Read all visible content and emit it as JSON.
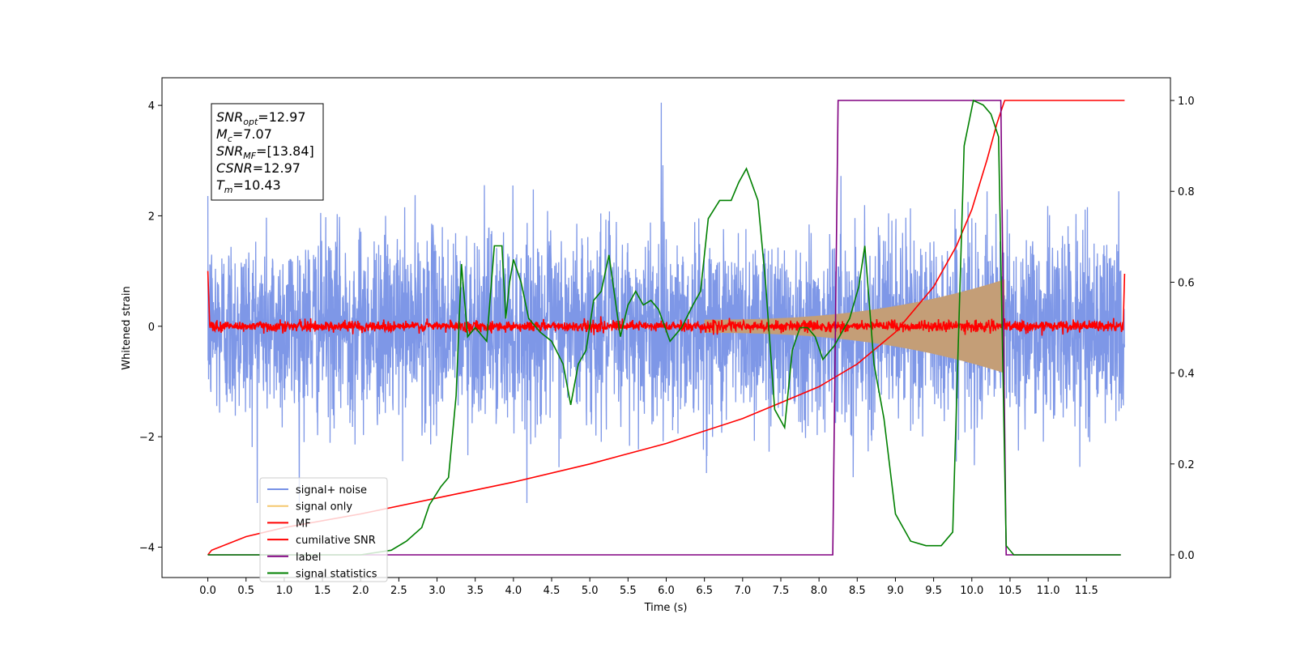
{
  "chart_data": {
    "type": "line",
    "xlabel": "Time (s)",
    "ylabel": "Whitened strain",
    "xlim": [
      -0.6,
      12.6
    ],
    "ylim": [
      -4.55,
      4.5
    ],
    "y2lim": [
      -0.05,
      1.05
    ],
    "x_ticks": [
      0.0,
      0.5,
      1.0,
      1.5,
      2.0,
      2.5,
      3.0,
      3.5,
      4.0,
      4.5,
      5.0,
      5.5,
      6.0,
      6.5,
      7.0,
      7.5,
      8.0,
      8.5,
      9.0,
      9.5,
      10.0,
      10.5,
      11.0,
      11.5
    ],
    "x_tick_labels": [
      "0.0",
      "0.5",
      "1.0",
      "1.5",
      "2.0",
      "2.5",
      "3.0",
      "3.5",
      "4.0",
      "4.5",
      "5.0",
      "5.5",
      "6.0",
      "6.5",
      "7.0",
      "7.5",
      "8.0",
      "8.5",
      "9.0",
      "9.5",
      "10.0",
      "10.5",
      "11.0",
      "11.5"
    ],
    "y_ticks": [
      -4,
      -2,
      0,
      2,
      4
    ],
    "y_tick_labels": [
      "−4",
      "−2",
      "0",
      "2",
      "4"
    ],
    "y2_ticks": [
      0.0,
      0.2,
      0.4,
      0.6,
      0.8,
      1.0
    ],
    "y2_tick_labels": [
      "0.0",
      "0.2",
      "0.4",
      "0.6",
      "0.8",
      "1.0"
    ],
    "legend_position": "lower-left",
    "series": [
      {
        "name": "signal+ noise",
        "color": "#7791e6",
        "axis": "left",
        "noise_sigma": 0.85,
        "noise_peak": 4.05,
        "t_start": 0.0,
        "t_end": 12.0
      },
      {
        "name": "signal only",
        "color": "#f5c86e",
        "axis": "left",
        "envelope": {
          "t_start": 6.5,
          "t_merge": 10.43,
          "amp_at_start": 0.12,
          "amp_at_merge": 0.85
        }
      },
      {
        "name": "MF",
        "color": "#ff0000",
        "axis": "left",
        "noise_sigma": 0.05,
        "start_spike": 1.0,
        "end_spike": 0.95
      },
      {
        "name": "cumilative SNR",
        "color": "#ff0000",
        "axis": "right",
        "points": [
          [
            0.0,
            0.0
          ],
          [
            0.05,
            0.01
          ],
          [
            0.5,
            0.04
          ],
          [
            1.0,
            0.06
          ],
          [
            2.0,
            0.09
          ],
          [
            3.0,
            0.125
          ],
          [
            4.0,
            0.16
          ],
          [
            5.0,
            0.2
          ],
          [
            6.0,
            0.245
          ],
          [
            7.0,
            0.3
          ],
          [
            7.5,
            0.335
          ],
          [
            8.0,
            0.37
          ],
          [
            8.5,
            0.42
          ],
          [
            9.0,
            0.49
          ],
          [
            9.5,
            0.59
          ],
          [
            9.8,
            0.68
          ],
          [
            10.0,
            0.76
          ],
          [
            10.2,
            0.87
          ],
          [
            10.33,
            0.95
          ],
          [
            10.43,
            1.0
          ],
          [
            12.0,
            1.0
          ]
        ]
      },
      {
        "name": "label",
        "color": "#800080",
        "axis": "right",
        "points": [
          [
            0.0,
            0.0
          ],
          [
            8.18,
            0.0
          ],
          [
            8.25,
            1.0
          ],
          [
            10.38,
            1.0
          ],
          [
            10.45,
            0.0
          ],
          [
            11.95,
            0.0
          ]
        ]
      },
      {
        "name": "signal statistics",
        "color": "#008000",
        "axis": "right",
        "points": [
          [
            0.0,
            0.0
          ],
          [
            1.0,
            0.0
          ],
          [
            2.0,
            0.0
          ],
          [
            2.4,
            0.01
          ],
          [
            2.6,
            0.03
          ],
          [
            2.8,
            0.06
          ],
          [
            2.9,
            0.11
          ],
          [
            3.05,
            0.15
          ],
          [
            3.15,
            0.17
          ],
          [
            3.25,
            0.35
          ],
          [
            3.32,
            0.64
          ],
          [
            3.4,
            0.48
          ],
          [
            3.5,
            0.5
          ],
          [
            3.65,
            0.47
          ],
          [
            3.75,
            0.68
          ],
          [
            3.85,
            0.68
          ],
          [
            3.9,
            0.52
          ],
          [
            3.95,
            0.6
          ],
          [
            4.0,
            0.65
          ],
          [
            4.1,
            0.6
          ],
          [
            4.2,
            0.52
          ],
          [
            4.35,
            0.49
          ],
          [
            4.5,
            0.47
          ],
          [
            4.65,
            0.42
          ],
          [
            4.75,
            0.33
          ],
          [
            4.85,
            0.42
          ],
          [
            4.95,
            0.45
          ],
          [
            5.05,
            0.56
          ],
          [
            5.15,
            0.58
          ],
          [
            5.25,
            0.66
          ],
          [
            5.4,
            0.48
          ],
          [
            5.5,
            0.55
          ],
          [
            5.6,
            0.58
          ],
          [
            5.7,
            0.55
          ],
          [
            5.8,
            0.56
          ],
          [
            5.9,
            0.54
          ],
          [
            6.05,
            0.47
          ],
          [
            6.2,
            0.5
          ],
          [
            6.35,
            0.55
          ],
          [
            6.45,
            0.58
          ],
          [
            6.55,
            0.74
          ],
          [
            6.7,
            0.78
          ],
          [
            6.85,
            0.78
          ],
          [
            6.95,
            0.82
          ],
          [
            7.05,
            0.85
          ],
          [
            7.2,
            0.78
          ],
          [
            7.3,
            0.6
          ],
          [
            7.42,
            0.32
          ],
          [
            7.55,
            0.28
          ],
          [
            7.65,
            0.45
          ],
          [
            7.75,
            0.5
          ],
          [
            7.85,
            0.5
          ],
          [
            7.95,
            0.48
          ],
          [
            8.05,
            0.43
          ],
          [
            8.2,
            0.46
          ],
          [
            8.4,
            0.52
          ],
          [
            8.52,
            0.59
          ],
          [
            8.6,
            0.68
          ],
          [
            8.72,
            0.42
          ],
          [
            8.85,
            0.3
          ],
          [
            9.0,
            0.09
          ],
          [
            9.2,
            0.03
          ],
          [
            9.4,
            0.02
          ],
          [
            9.6,
            0.02
          ],
          [
            9.75,
            0.05
          ],
          [
            9.9,
            0.9
          ],
          [
            10.02,
            1.0
          ],
          [
            10.15,
            0.99
          ],
          [
            10.25,
            0.97
          ],
          [
            10.35,
            0.92
          ],
          [
            10.45,
            0.02
          ],
          [
            10.55,
            0.0
          ],
          [
            11.95,
            0.0
          ]
        ]
      }
    ],
    "annotation": {
      "lines": [
        {
          "base": "SNR",
          "sub": "opt",
          "value": "=12.97"
        },
        {
          "base": "M",
          "sub": "c",
          "value": "=7.07"
        },
        {
          "base": "SNR",
          "sub": "MF",
          "value": "=[13.84]"
        },
        {
          "base": "CSNR",
          "sub": "",
          "value": "=12.97"
        },
        {
          "base": "T",
          "sub": "m",
          "value": "=10.43"
        }
      ]
    }
  }
}
